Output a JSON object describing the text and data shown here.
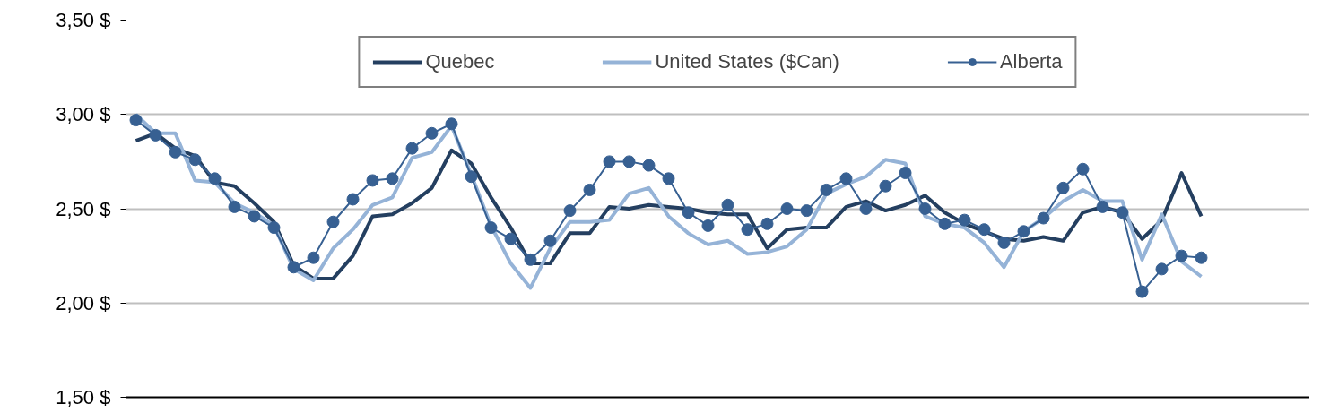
{
  "chart_data": {
    "type": "line",
    "categories": [
      null,
      null,
      null,
      null,
      null,
      null,
      null,
      null,
      null,
      null,
      null,
      null,
      null,
      null,
      null,
      null,
      null,
      null,
      null,
      null,
      null,
      null,
      null,
      null,
      null,
      null,
      null,
      null,
      null,
      null,
      null,
      null,
      null,
      null,
      null,
      null,
      null,
      null,
      null,
      null,
      null,
      null,
      null,
      null,
      null,
      null,
      null,
      null,
      null,
      null,
      null,
      null,
      null,
      null,
      null
    ],
    "ylim": [
      1.5,
      3.5
    ],
    "yticks": [
      {
        "value": 1.5,
        "label": "1,50  $"
      },
      {
        "value": 2.0,
        "label": "2,00  $"
      },
      {
        "value": 2.5,
        "label": "2,50  $"
      },
      {
        "value": 3.0,
        "label": "3,00  $"
      },
      {
        "value": 3.5,
        "label": "3,50  $"
      }
    ],
    "tick_labels": "y",
    "grid": "y",
    "legend": "top",
    "series": [
      {
        "name": "Quebec",
        "color": "#243f60",
        "marker": "none",
        "values": [
          2.86,
          2.9,
          2.82,
          2.78,
          2.64,
          2.62,
          2.53,
          2.43,
          2.2,
          2.13,
          2.13,
          2.25,
          2.46,
          2.47,
          2.53,
          2.61,
          2.81,
          2.74,
          2.56,
          2.4,
          2.21,
          2.21,
          2.37,
          2.37,
          2.51,
          2.5,
          2.52,
          2.51,
          2.5,
          2.48,
          2.47,
          2.47,
          2.29,
          2.39,
          2.4,
          2.4,
          2.51,
          2.54,
          2.49,
          2.52,
          2.57,
          2.48,
          2.42,
          2.38,
          2.34,
          2.33,
          2.35,
          2.33,
          2.48,
          2.51,
          2.48,
          2.34,
          2.44,
          2.69,
          2.46
        ]
      },
      {
        "name": "United States ($Can)",
        "color": "#95b3d7",
        "marker": "none",
        "values": [
          3.0,
          2.9,
          2.9,
          2.65,
          2.64,
          2.53,
          2.48,
          2.41,
          2.18,
          2.12,
          2.29,
          2.39,
          2.52,
          2.56,
          2.77,
          2.8,
          2.94,
          2.68,
          2.41,
          2.21,
          2.08,
          2.29,
          2.43,
          2.43,
          2.44,
          2.58,
          2.61,
          2.46,
          2.37,
          2.31,
          2.33,
          2.26,
          2.27,
          2.3,
          2.39,
          2.58,
          2.63,
          2.67,
          2.76,
          2.74,
          2.46,
          2.42,
          2.4,
          2.32,
          2.19,
          2.38,
          2.45,
          2.54,
          2.6,
          2.54,
          2.54,
          2.23,
          2.47,
          2.22,
          2.14
        ]
      },
      {
        "name": "Alberta",
        "color": "#376092",
        "marker": "circle",
        "values": [
          2.97,
          2.89,
          2.8,
          2.76,
          2.66,
          2.51,
          2.46,
          2.4,
          2.19,
          2.24,
          2.43,
          2.55,
          2.65,
          2.66,
          2.82,
          2.9,
          2.95,
          2.67,
          2.4,
          2.34,
          2.23,
          2.33,
          2.49,
          2.6,
          2.75,
          2.75,
          2.73,
          2.66,
          2.48,
          2.41,
          2.52,
          2.39,
          2.42,
          2.5,
          2.49,
          2.6,
          2.66,
          2.5,
          2.62,
          2.69,
          2.5,
          2.42,
          2.44,
          2.39,
          2.32,
          2.38,
          2.45,
          2.61,
          2.71,
          2.51,
          2.48,
          2.06,
          2.18,
          2.25,
          2.24
        ]
      }
    ]
  }
}
